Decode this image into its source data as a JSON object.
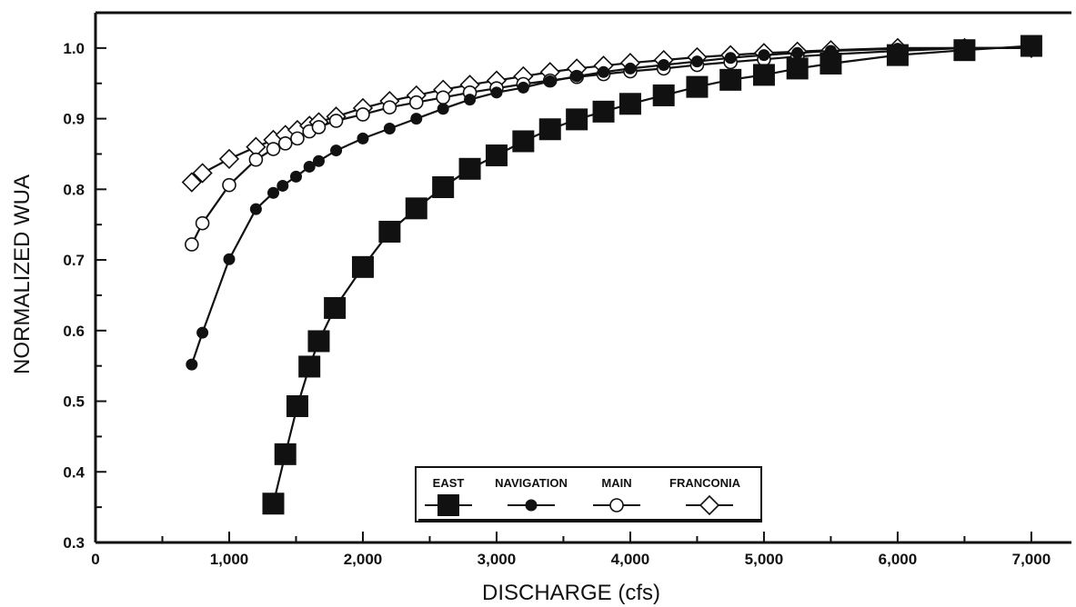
{
  "chart_data": {
    "type": "line",
    "xlabel": "DISCHARGE (cfs)",
    "ylabel": "NORMALIZED WUA",
    "xlim": [
      0,
      7300
    ],
    "ylim": [
      0.3,
      1.05
    ],
    "x_ticks": [
      0,
      1000,
      2000,
      3000,
      4000,
      5000,
      6000,
      7000
    ],
    "x_tick_labels": [
      "0",
      "1,000",
      "2,000",
      "3,000",
      "4,000",
      "5,000",
      "6,000",
      "7,000"
    ],
    "y_ticks": [
      0.3,
      0.4,
      0.5,
      0.6,
      0.7,
      0.8,
      0.9,
      1.0
    ],
    "y_tick_labels": [
      "0.3",
      "0.4",
      "0.5",
      "0.6",
      "0.7",
      "0.8",
      "0.9",
      "1.0"
    ],
    "grid": false,
    "legend_position": "bottom-center",
    "series": [
      {
        "name": "EAST",
        "marker": "filled-square",
        "x": [
          1330,
          1420,
          1510,
          1600,
          1670,
          1790,
          2000,
          2200,
          2400,
          2600,
          2800,
          3000,
          3200,
          3400,
          3600,
          3800,
          4000,
          4250,
          4500,
          4750,
          5000,
          5250,
          5500,
          6000,
          6500,
          7000
        ],
        "y": [
          0.355,
          0.425,
          0.493,
          0.549,
          0.585,
          0.632,
          0.69,
          0.74,
          0.773,
          0.803,
          0.829,
          0.848,
          0.868,
          0.885,
          0.899,
          0.91,
          0.921,
          0.933,
          0.945,
          0.955,
          0.962,
          0.971,
          0.978,
          0.99,
          0.997,
          1.003
        ]
      },
      {
        "name": "NAVIGATION",
        "marker": "filled-circle",
        "x": [
          720,
          800,
          1000,
          1200,
          1330,
          1400,
          1500,
          1600,
          1670,
          1800,
          2000,
          2200,
          2400,
          2600,
          2800,
          3000,
          3200,
          3400,
          3600,
          3800,
          4000,
          4250,
          4500,
          4750,
          5000,
          5250,
          5500,
          6000,
          6500,
          7000
        ],
        "y": [
          0.552,
          0.597,
          0.701,
          0.772,
          0.795,
          0.805,
          0.818,
          0.832,
          0.84,
          0.855,
          0.872,
          0.886,
          0.9,
          0.914,
          0.927,
          0.937,
          0.944,
          0.953,
          0.96,
          0.966,
          0.971,
          0.976,
          0.981,
          0.986,
          0.99,
          0.993,
          0.996,
          0.999,
          1.0,
          1.0
        ]
      },
      {
        "name": "MAIN",
        "marker": "open-circle",
        "x": [
          720,
          800,
          1000,
          1200,
          1330,
          1420,
          1510,
          1600,
          1670,
          1800,
          2000,
          2200,
          2400,
          2600,
          2800,
          3000,
          3200,
          3400,
          3600,
          3800,
          4000,
          4250,
          4500,
          4750,
          5000,
          5250,
          5500,
          6000,
          6500,
          7000
        ],
        "y": [
          0.722,
          0.752,
          0.806,
          0.842,
          0.857,
          0.865,
          0.872,
          0.882,
          0.888,
          0.897,
          0.906,
          0.916,
          0.923,
          0.93,
          0.937,
          0.943,
          0.949,
          0.954,
          0.959,
          0.963,
          0.967,
          0.971,
          0.976,
          0.98,
          0.984,
          0.988,
          0.991,
          0.996,
          1.0,
          1.0
        ]
      },
      {
        "name": "FRANCONIA",
        "marker": "open-diamond",
        "x": [
          720,
          800,
          1000,
          1200,
          1330,
          1420,
          1510,
          1600,
          1670,
          1800,
          2000,
          2200,
          2400,
          2600,
          2800,
          3000,
          3200,
          3400,
          3600,
          3800,
          4000,
          4250,
          4500,
          4750,
          5000,
          5250,
          5500,
          6000,
          6500,
          7000
        ],
        "y": [
          0.81,
          0.823,
          0.843,
          0.86,
          0.87,
          0.877,
          0.884,
          0.89,
          0.895,
          0.903,
          0.915,
          0.925,
          0.933,
          0.941,
          0.948,
          0.954,
          0.96,
          0.966,
          0.971,
          0.975,
          0.979,
          0.983,
          0.987,
          0.99,
          0.993,
          0.995,
          0.997,
          1.0,
          1.0,
          1.0
        ]
      }
    ]
  }
}
